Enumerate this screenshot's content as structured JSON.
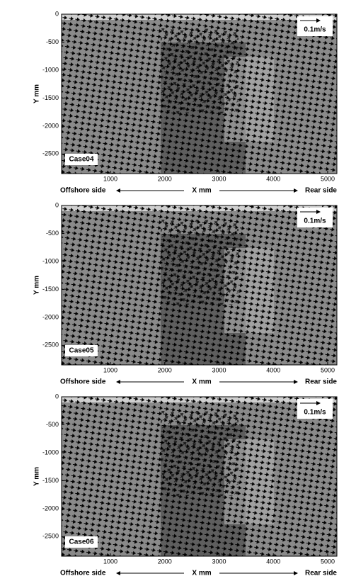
{
  "chart_data": [
    {
      "type": "vector-field",
      "case_label": "Case04",
      "scale_label": "0.1m/s",
      "xlabel": "X mm",
      "ylabel": "Y mm",
      "x_left_label": "Offshore side",
      "x_right_label": "Rear side",
      "xlim": [
        100,
        5170
      ],
      "ylim": [
        -2850,
        0
      ],
      "xticks": [
        1000,
        2000,
        3000,
        4000,
        5000
      ],
      "yticks": [
        0,
        -500,
        -1000,
        -1500,
        -2000,
        -2500
      ]
    },
    {
      "type": "vector-field",
      "case_label": "Case05",
      "scale_label": "0.1m/s",
      "xlabel": "X mm",
      "ylabel": "Y mm",
      "x_left_label": "Offshore side",
      "x_right_label": "Rear side",
      "xlim": [
        100,
        5170
      ],
      "ylim": [
        -2850,
        0
      ],
      "xticks": [
        1000,
        2000,
        3000,
        4000,
        5000
      ],
      "yticks": [
        0,
        -500,
        -1000,
        -1500,
        -2000,
        -2500
      ]
    },
    {
      "type": "vector-field",
      "case_label": "Case06",
      "scale_label": "0.1m/s",
      "xlabel": "X mm",
      "ylabel": "Y mm",
      "x_left_label": "Offshore side",
      "x_right_label": "Rear side",
      "xlim": [
        100,
        5170
      ],
      "ylim": [
        -2850,
        0
      ],
      "xticks": [
        1000,
        2000,
        3000,
        4000,
        5000
      ],
      "yticks": [
        0,
        -500,
        -1000,
        -1500,
        -2000,
        -2500
      ]
    }
  ]
}
